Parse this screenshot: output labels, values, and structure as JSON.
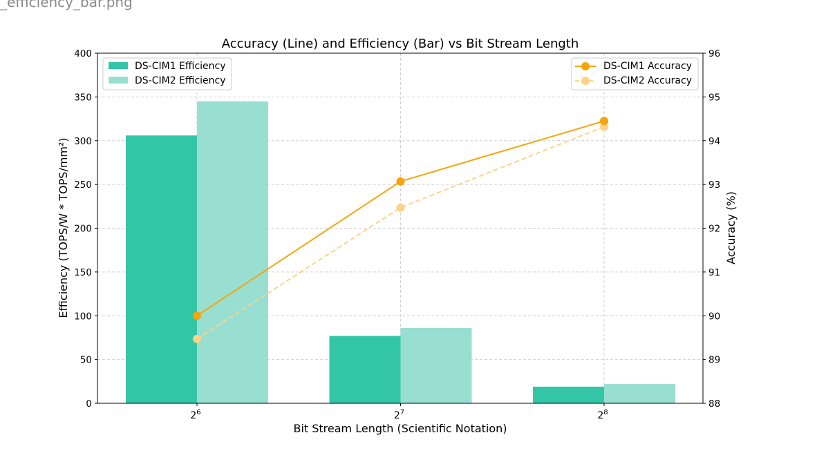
{
  "header": {
    "filename": "_efficiency_bar.png"
  },
  "chart_data": {
    "type": "bar",
    "title": "Accuracy (Line) and Efficiency (Bar) vs Bit Stream Length",
    "xlabel": "Bit Stream Length (Scientific Notation)",
    "ylabel": "Efficiency (TOPS/W * TOPS/mm²)",
    "y2label": "Accuracy (%)",
    "categories": [
      {
        "base": "2",
        "exp": "6"
      },
      {
        "base": "2",
        "exp": "7"
      },
      {
        "base": "2",
        "exp": "8"
      }
    ],
    "ylim": [
      0,
      400
    ],
    "y_ticks": [
      0,
      50,
      100,
      150,
      200,
      250,
      300,
      350,
      400
    ],
    "y2lim": [
      88,
      96
    ],
    "y2_ticks": [
      88,
      89,
      90,
      91,
      92,
      93,
      94,
      95,
      96
    ],
    "grid": true,
    "bar_series": [
      {
        "name": "DS-CIM1 Efficiency",
        "values": [
          306,
          77,
          19
        ],
        "color": "#33c6a6"
      },
      {
        "name": "DS-CIM2 Efficiency",
        "values": [
          345,
          86,
          22
        ],
        "color": "#98dfd2"
      }
    ],
    "line_series": [
      {
        "name": "DS-CIM1 Accuracy",
        "values": [
          90.0,
          93.07,
          94.45
        ],
        "color": "#f5a40c",
        "style": "solid"
      },
      {
        "name": "DS-CIM2 Accuracy",
        "values": [
          89.47,
          92.47,
          94.32
        ],
        "color": "#fdd388",
        "style": "dashed"
      }
    ],
    "legend_bars": "top-left",
    "legend_lines": "top-right"
  }
}
